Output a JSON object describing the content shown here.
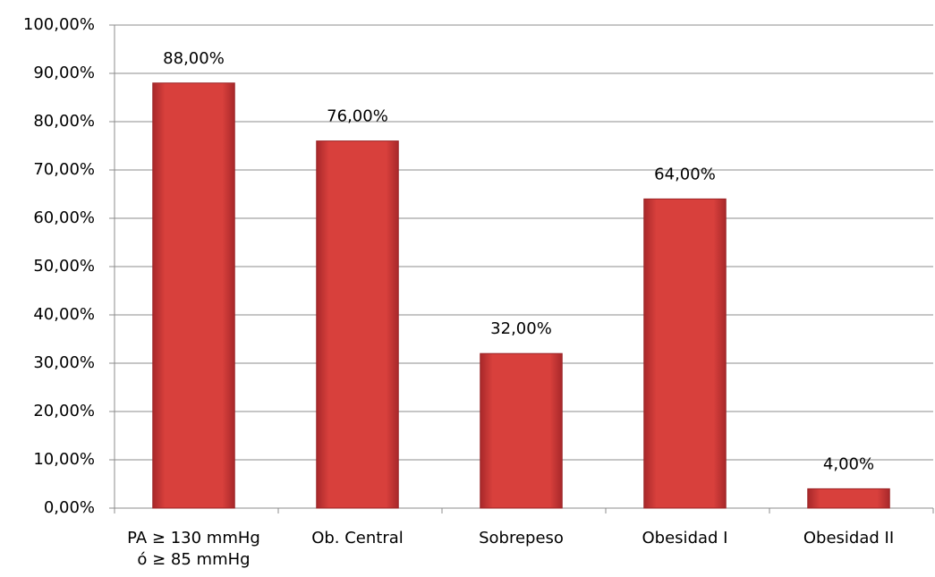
{
  "chart_data": {
    "type": "bar",
    "categories": [
      "PA ≥ 130 mmHg\nó ≥ 85 mmHg",
      "Ob. Central",
      "Sobrepeso",
      "Obesidad I",
      "Obesidad II"
    ],
    "values": [
      88,
      76,
      32,
      64,
      4
    ],
    "value_labels": [
      "88,00%",
      "76,00%",
      "32,00%",
      "64,00%",
      "4,00%"
    ],
    "color": "#d8403c",
    "ylim": [
      0,
      100
    ],
    "yticks": [
      {
        "value": 0,
        "label": "0,00%"
      },
      {
        "value": 10,
        "label": "10,00%"
      },
      {
        "value": 20,
        "label": "20,00%"
      },
      {
        "value": 30,
        "label": "30,00%"
      },
      {
        "value": 40,
        "label": "40,00%"
      },
      {
        "value": 50,
        "label": "50,00%"
      },
      {
        "value": 60,
        "label": "60,00%"
      },
      {
        "value": 70,
        "label": "70,00%"
      },
      {
        "value": 80,
        "label": "80,00%"
      },
      {
        "value": 90,
        "label": "90,00%"
      },
      {
        "value": 100,
        "label": "100,00%"
      }
    ],
    "grid": true
  }
}
